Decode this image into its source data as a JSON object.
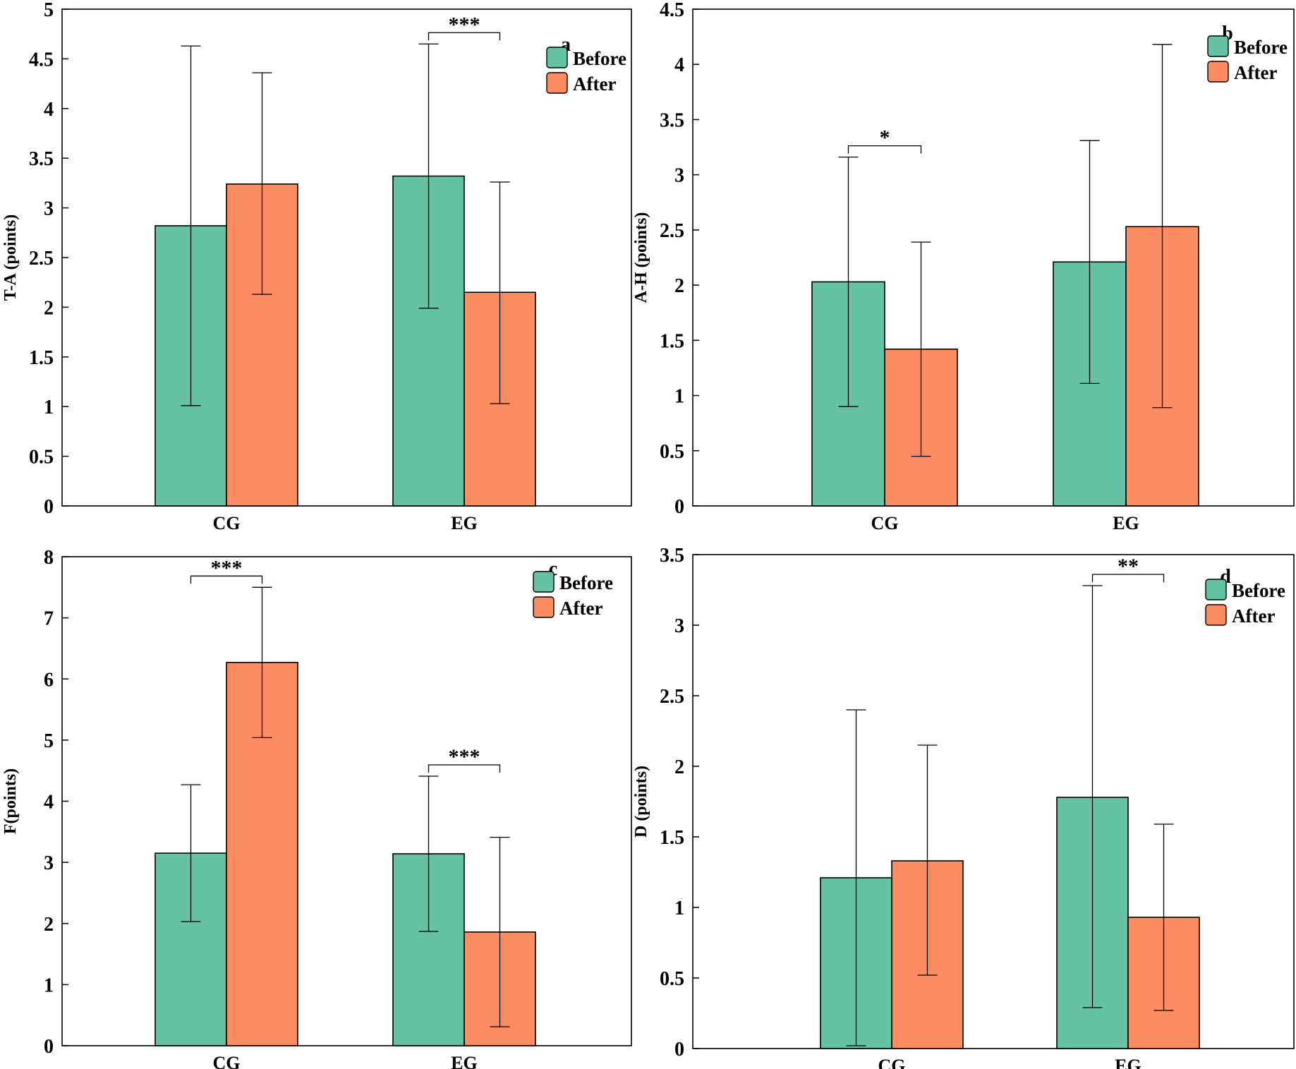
{
  "colors": {
    "before": "#66c2a5",
    "after": "#fc8d62",
    "axis": "#000000",
    "bar_edge": "#000000"
  },
  "chart_data": [
    {
      "type": "bar",
      "panel": "a",
      "ylabel": "T-A (points)",
      "categories": [
        "CG",
        "EG"
      ],
      "ylim": [
        0,
        5
      ],
      "yticks": [
        "0",
        "0.5",
        "1",
        "1.5",
        "2",
        "2.5",
        "3",
        "3.5",
        "4",
        "4.5",
        "5"
      ],
      "legend": [
        "Before",
        "After"
      ],
      "legend_position": "top-right",
      "grid": false,
      "series": [
        {
          "name": "Before",
          "values": [
            2.82,
            3.32
          ],
          "error_low": [
            1.01,
            1.99
          ],
          "error_high": [
            4.63,
            4.65
          ]
        },
        {
          "name": "After",
          "values": [
            3.24,
            2.15
          ],
          "error_low": [
            2.13,
            1.03
          ],
          "error_high": [
            4.36,
            3.26
          ]
        }
      ],
      "significance": [
        {
          "category": "EG",
          "label": "***"
        }
      ]
    },
    {
      "type": "bar",
      "panel": "b",
      "ylabel": "A-H (points)",
      "categories": [
        "CG",
        "EG"
      ],
      "ylim": [
        0,
        4.5
      ],
      "yticks": [
        "0",
        "0.5",
        "1",
        "1.5",
        "2",
        "2.5",
        "3",
        "3.5",
        "4",
        "4.5"
      ],
      "legend": [
        "Before",
        "After"
      ],
      "legend_position": "top-right",
      "grid": false,
      "series": [
        {
          "name": "Before",
          "values": [
            2.03,
            2.21
          ],
          "error_low": [
            0.9,
            1.11
          ],
          "error_high": [
            3.16,
            3.31
          ]
        },
        {
          "name": "After",
          "values": [
            1.42,
            2.53
          ],
          "error_low": [
            0.45,
            0.89
          ],
          "error_high": [
            2.39,
            4.18
          ]
        }
      ],
      "significance": [
        {
          "category": "CG",
          "label": "*"
        }
      ]
    },
    {
      "type": "bar",
      "panel": "c",
      "ylabel": "F(points)",
      "categories": [
        "CG",
        "EG"
      ],
      "ylim": [
        0,
        8
      ],
      "yticks": [
        "0",
        "1",
        "2",
        "3",
        "4",
        "5",
        "6",
        "7",
        "8"
      ],
      "legend": [
        "Before",
        "After"
      ],
      "legend_position": "top-right",
      "grid": false,
      "series": [
        {
          "name": "Before",
          "values": [
            3.15,
            3.14
          ],
          "error_low": [
            2.03,
            1.87
          ],
          "error_high": [
            4.27,
            4.41
          ]
        },
        {
          "name": "After",
          "values": [
            6.27,
            1.86
          ],
          "error_low": [
            5.04,
            0.31
          ],
          "error_high": [
            7.5,
            3.41
          ]
        }
      ],
      "significance": [
        {
          "category": "CG",
          "label": "***"
        },
        {
          "category": "EG",
          "label": "***"
        }
      ]
    },
    {
      "type": "bar",
      "panel": "d",
      "ylabel": "D (points)",
      "categories": [
        "CG",
        "EG"
      ],
      "ylim": [
        0,
        3.5
      ],
      "yticks": [
        "0",
        "0.5",
        "1",
        "1.5",
        "2",
        "2.5",
        "3",
        "3.5"
      ],
      "legend": [
        "Before",
        "After"
      ],
      "legend_position": "top-right",
      "grid": false,
      "series": [
        {
          "name": "Before",
          "values": [
            1.21,
            1.78
          ],
          "error_low": [
            0.02,
            0.29
          ],
          "error_high": [
            2.4,
            3.28
          ]
        },
        {
          "name": "After",
          "values": [
            1.33,
            0.93
          ],
          "error_low": [
            0.52,
            0.27
          ],
          "error_high": [
            2.15,
            1.59
          ]
        }
      ],
      "significance": [
        {
          "category": "EG",
          "label": "**"
        }
      ]
    }
  ]
}
